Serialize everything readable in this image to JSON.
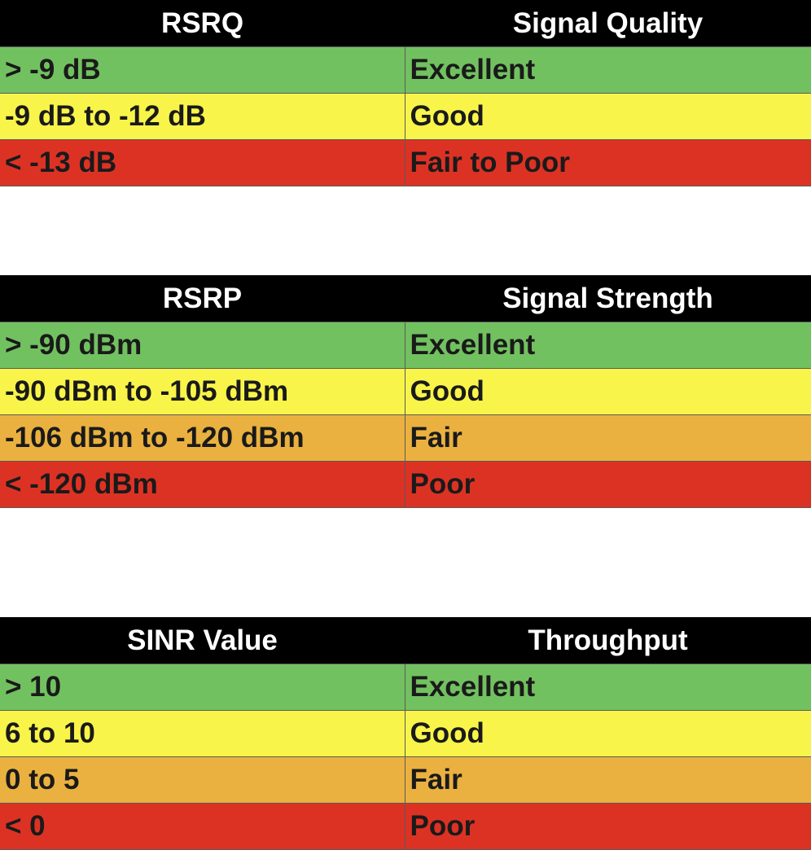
{
  "colors": {
    "header_bg": "#000000",
    "header_text": "#ffffff",
    "excellent": "#72c160",
    "good": "#f8f44a",
    "fair": "#eab140",
    "poor": "#dc3224"
  },
  "tables": [
    {
      "id": "rsrq",
      "headers": [
        "RSRQ",
        "Signal Quality"
      ],
      "rows": [
        {
          "range": "> -9 dB",
          "rating": "Excellent",
          "level": "excellent"
        },
        {
          "range": "-9 dB to -12 dB",
          "rating": "Good",
          "level": "good"
        },
        {
          "range": "< -13 dB",
          "rating": "Fair to Poor",
          "level": "poor"
        }
      ]
    },
    {
      "id": "rsrp",
      "headers": [
        "RSRP",
        "Signal Strength"
      ],
      "rows": [
        {
          "range": "> -90 dBm",
          "rating": "Excellent",
          "level": "excellent"
        },
        {
          "range": "-90 dBm to -105 dBm",
          "rating": "Good",
          "level": "good"
        },
        {
          "range": "-106 dBm to -120 dBm",
          "rating": "Fair",
          "level": "fair"
        },
        {
          "range": "< -120 dBm",
          "rating": "Poor",
          "level": "poor"
        }
      ]
    },
    {
      "id": "sinr",
      "headers": [
        "SINR Value",
        "Throughput"
      ],
      "rows": [
        {
          "range": "> 10",
          "rating": "Excellent",
          "level": "excellent"
        },
        {
          "range": "6 to 10",
          "rating": "Good",
          "level": "good"
        },
        {
          "range": "0 to 5",
          "rating": "Fair",
          "level": "fair"
        },
        {
          "range": "< 0",
          "rating": "Poor",
          "level": "poor"
        }
      ]
    }
  ]
}
